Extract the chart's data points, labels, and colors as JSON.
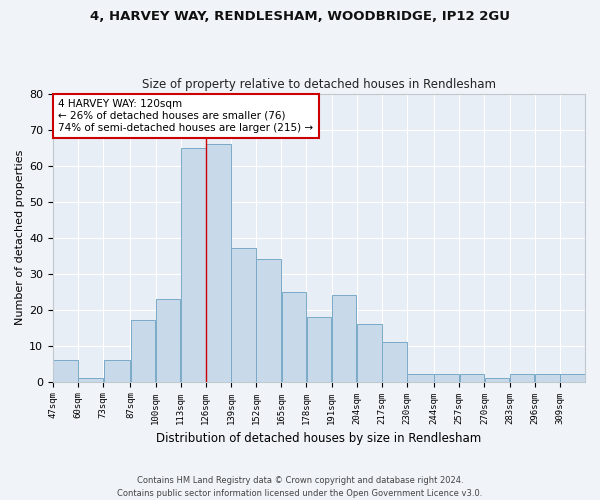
{
  "title": "4, HARVEY WAY, RENDLESHAM, WOODBRIDGE, IP12 2GU",
  "subtitle": "Size of property relative to detached houses in Rendlesham",
  "xlabel": "Distribution of detached houses by size in Rendlesham",
  "ylabel": "Number of detached properties",
  "bar_color": "#c8d9ea",
  "bar_edge_color": "#7aaac8",
  "background_color": "#e8eef5",
  "grid_color": "#ffffff",
  "annotation_text": "4 HARVEY WAY: 120sqm\n← 26% of detached houses are smaller (76)\n74% of semi-detached houses are larger (215) →",
  "property_line_x": 126,
  "categories": [
    "47sqm",
    "60sqm",
    "73sqm",
    "87sqm",
    "100sqm",
    "113sqm",
    "126sqm",
    "139sqm",
    "152sqm",
    "165sqm",
    "178sqm",
    "191sqm",
    "204sqm",
    "217sqm",
    "230sqm",
    "244sqm",
    "257sqm",
    "270sqm",
    "283sqm",
    "296sqm",
    "309sqm"
  ],
  "bin_edges": [
    47,
    60,
    73,
    87,
    100,
    113,
    126,
    139,
    152,
    165,
    178,
    191,
    204,
    217,
    230,
    244,
    257,
    270,
    283,
    296,
    309,
    322
  ],
  "values": [
    6,
    1,
    6,
    17,
    23,
    65,
    66,
    37,
    34,
    25,
    18,
    24,
    16,
    11,
    2,
    2,
    2,
    1,
    2,
    2,
    2
  ],
  "ylim": [
    0,
    80
  ],
  "yticks": [
    0,
    10,
    20,
    30,
    40,
    50,
    60,
    70,
    80
  ],
  "footer": "Contains HM Land Registry data © Crown copyright and database right 2024.\nContains public sector information licensed under the Open Government Licence v3.0.",
  "red_line_color": "#cc0000",
  "annotation_box_color": "#ffffff",
  "annotation_box_edge_color": "#cc0000",
  "fig_width": 6.0,
  "fig_height": 5.0,
  "fig_dpi": 100
}
